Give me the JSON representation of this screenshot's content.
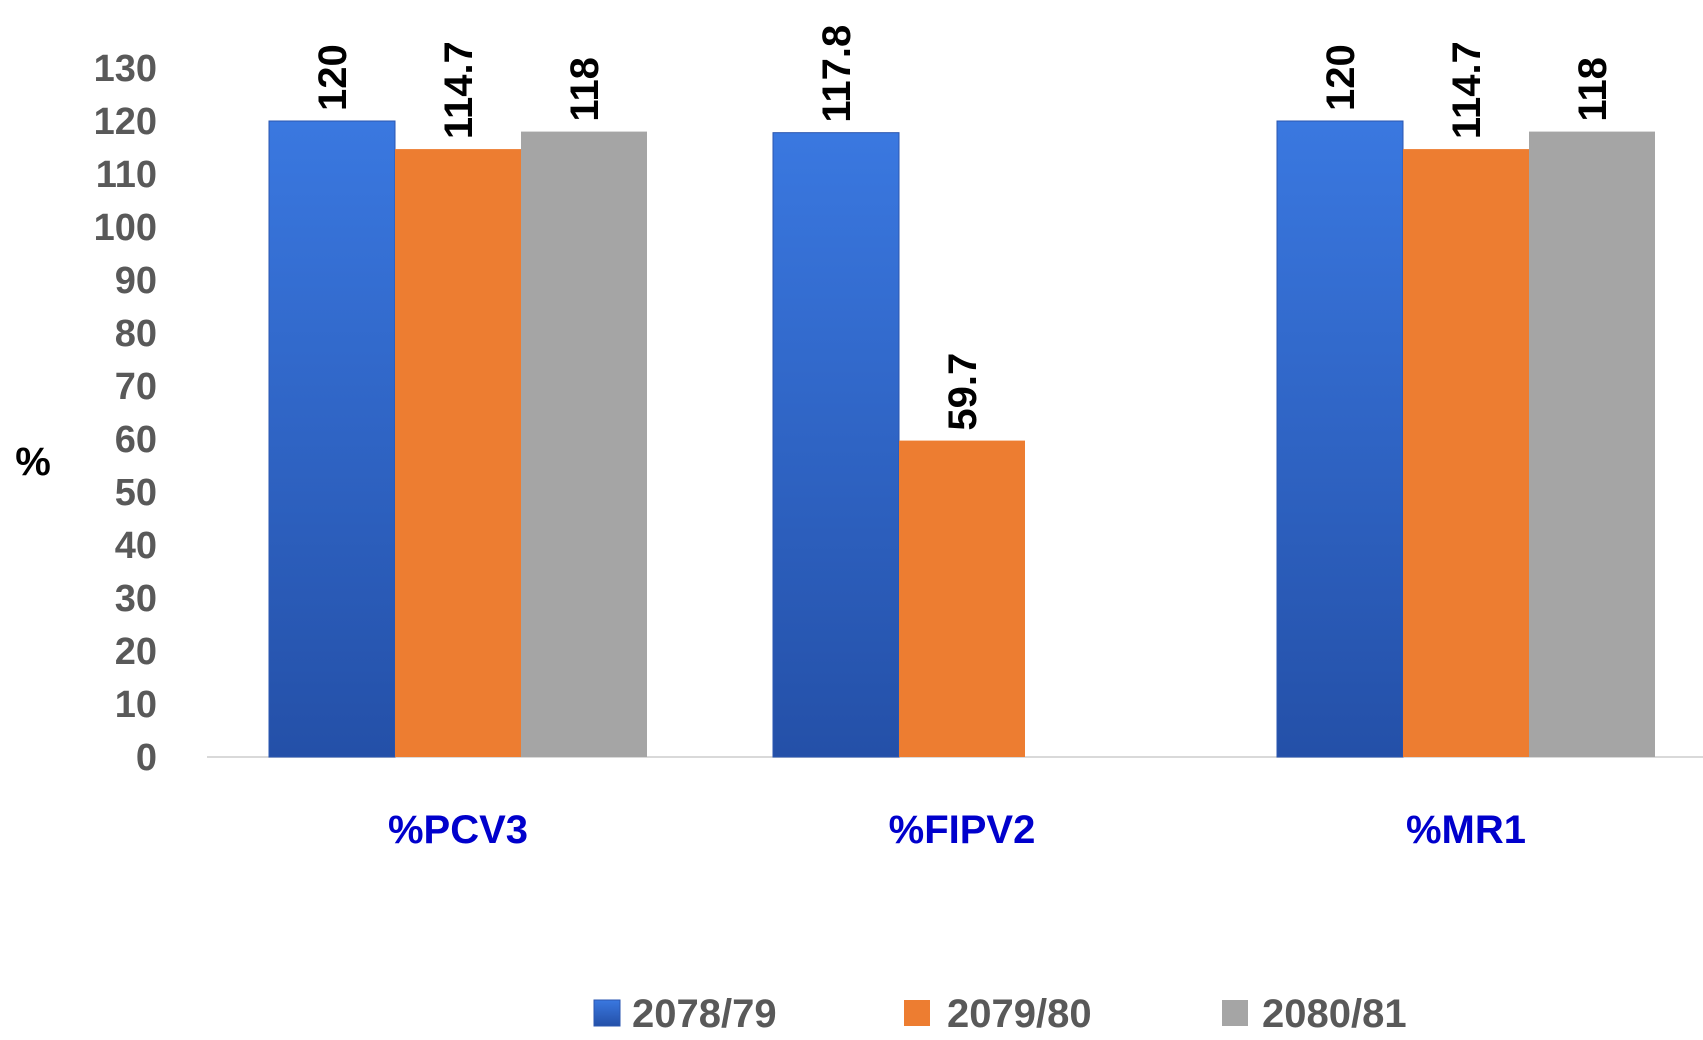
{
  "chart_data": {
    "type": "bar",
    "title": "",
    "xlabel": "",
    "ylabel": "%",
    "ylim": [
      0,
      130
    ],
    "yticks": [
      0,
      10,
      20,
      30,
      40,
      50,
      60,
      70,
      80,
      90,
      100,
      110,
      120,
      130
    ],
    "categories": [
      "%PCV3",
      "%FIPV2",
      "%MR1"
    ],
    "series": [
      {
        "name": "2078/79",
        "values": [
          120,
          117.8,
          120
        ],
        "labels": [
          "120",
          "117.8",
          "120"
        ],
        "color": "#2e66cc"
      },
      {
        "name": "2079/80",
        "values": [
          114.7,
          59.7,
          114.7
        ],
        "labels": [
          "114.7",
          "59.7",
          "114.7"
        ],
        "color": "#ed7d31"
      },
      {
        "name": "2080/81",
        "values": [
          118,
          null,
          118
        ],
        "labels": [
          "118",
          "",
          "118"
        ],
        "color": "#a5a5a5"
      }
    ],
    "legend_position": "bottom",
    "grid": false
  }
}
